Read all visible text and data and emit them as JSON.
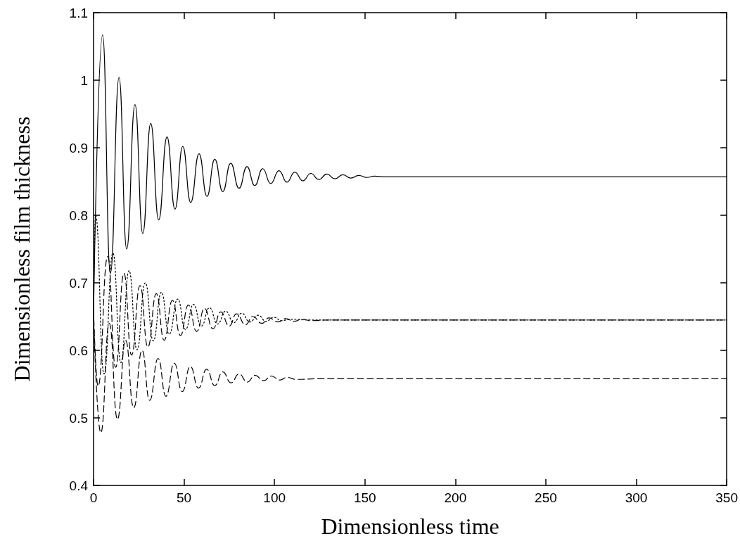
{
  "chart_data": {
    "type": "line",
    "xlabel": "Dimensionless time",
    "ylabel": "Dimensionless film thickness",
    "xlim": [
      0,
      350
    ],
    "xticks": [
      0,
      50,
      100,
      150,
      200,
      250,
      300,
      350
    ],
    "ylim": [
      0.4,
      1.1
    ],
    "yticks": [
      0.4,
      0.5,
      0.6,
      0.7,
      0.8,
      0.9,
      1,
      1.1
    ],
    "grid": false,
    "marker": "none",
    "series": [
      {
        "color": "#000000",
        "line_style": "solid",
        "x": [
          0,
          5,
          9.3,
          14.1,
          18.3,
          22.9,
          27.2,
          31.6,
          36,
          40.6,
          45,
          49.3,
          53.7,
          58.3,
          62.7,
          67,
          71.4,
          75.8,
          80.4,
          84.8,
          89.1,
          93.5,
          97.9,
          102.5,
          106.9,
          111.2,
          115.7,
          120.1,
          124.5,
          129,
          133.4,
          137.8,
          142.2,
          146.6,
          151,
          155.4,
          160,
          350
        ],
        "values": [
          0.655,
          1.067,
          0.714,
          1.004,
          0.75,
          0.964,
          0.773,
          0.936,
          0.793,
          0.916,
          0.809,
          0.902,
          0.819,
          0.891,
          0.828,
          0.883,
          0.835,
          0.877,
          0.84,
          0.872,
          0.844,
          0.869,
          0.847,
          0.866,
          0.849,
          0.864,
          0.851,
          0.862,
          0.853,
          0.861,
          0.854,
          0.86,
          0.855,
          0.859,
          0.856,
          0.858,
          0.857,
          0.857
        ]
      },
      {
        "color": "#000000",
        "line_style": "dashed",
        "x": [
          0,
          2.5,
          7.8,
          12.2,
          16.8,
          21,
          25.7,
          30,
          34.7,
          39,
          43.6,
          48,
          52.4,
          57,
          61.3,
          66,
          70.3,
          75,
          79,
          84,
          88,
          93,
          97,
          102,
          106,
          111,
          115,
          120,
          130,
          350
        ],
        "values": [
          0.66,
          0.547,
          0.739,
          0.575,
          0.714,
          0.593,
          0.696,
          0.605,
          0.684,
          0.615,
          0.674,
          0.622,
          0.667,
          0.628,
          0.662,
          0.632,
          0.657,
          0.636,
          0.654,
          0.638,
          0.65,
          0.64,
          0.648,
          0.642,
          0.647,
          0.643,
          0.646,
          0.644,
          0.645,
          0.645
        ]
      },
      {
        "color": "#000000",
        "line_style": "dotted",
        "x": [
          0,
          1.1,
          5.8,
          10.7,
          15.1,
          19.6,
          24,
          28.6,
          33,
          37.5,
          41.8,
          46.5,
          50.8,
          55.2,
          59.6,
          64.1,
          68.5,
          73,
          77.5,
          81.9,
          86.4,
          90.9,
          95.4,
          99.6,
          104,
          108.6,
          120,
          350
        ],
        "values": [
          0.66,
          0.8,
          0.565,
          0.744,
          0.582,
          0.718,
          0.601,
          0.7,
          0.614,
          0.686,
          0.624,
          0.676,
          0.631,
          0.668,
          0.636,
          0.663,
          0.639,
          0.658,
          0.641,
          0.655,
          0.642,
          0.652,
          0.643,
          0.649,
          0.644,
          0.646,
          0.645,
          0.645
        ]
      },
      {
        "color": "#000000",
        "line_style": "dashed",
        "x": [
          0,
          4,
          8.7,
          13.2,
          17.7,
          22.2,
          26.8,
          31,
          35.7,
          40,
          44.6,
          49,
          53.5,
          58,
          62.5,
          67,
          71.4,
          76,
          80.4,
          85,
          89.3,
          94,
          98.3,
          103,
          107,
          112,
          125,
          350
        ],
        "values": [
          0.65,
          0.478,
          0.64,
          0.498,
          0.615,
          0.515,
          0.6,
          0.526,
          0.588,
          0.532,
          0.581,
          0.539,
          0.576,
          0.544,
          0.572,
          0.548,
          0.568,
          0.552,
          0.565,
          0.553,
          0.563,
          0.555,
          0.562,
          0.556,
          0.56,
          0.557,
          0.558,
          0.558
        ]
      }
    ]
  }
}
